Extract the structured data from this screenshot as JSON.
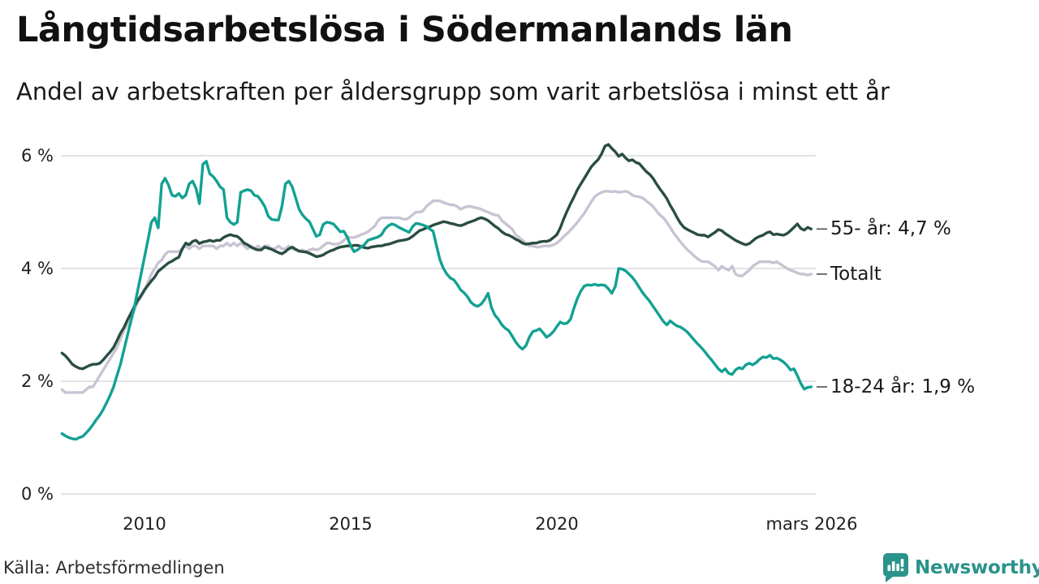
{
  "header": {
    "title": "Långtidsarbetslösa i Södermanlands län",
    "subtitle": "Andel av arbetskraften per åldersgrupp som varit arbetslösa i minst ett år"
  },
  "chart_data": {
    "type": "line",
    "unit": "%",
    "frequency": "monthly",
    "x_start": "2008-01",
    "x_end": "2026-03",
    "ylim": [
      0,
      6.45
    ],
    "grid": "horizontal",
    "legend_position": "right-end-labels",
    "colors": {
      "grid": "#e3e3e6",
      "tick_dash": "#4d4d4d",
      "background": "#ffffff"
    },
    "y_ticks": [
      {
        "v": 0,
        "label": "0 %"
      },
      {
        "v": 2,
        "label": "2 %"
      },
      {
        "v": 4,
        "label": "4 %"
      },
      {
        "v": 6,
        "label": "6 %"
      }
    ],
    "x_ticks": [
      {
        "t": 2010.0,
        "label": "2010"
      },
      {
        "t": 2015.0,
        "label": "2015"
      },
      {
        "t": 2020.0,
        "label": "2020"
      },
      {
        "t": 2026.1667,
        "label": "mars 2026"
      }
    ],
    "series": [
      {
        "id": "age-55-plus",
        "name": "55- år",
        "end_label": "55- år: 4,7 %",
        "end_value": "4,7 %",
        "color": "#2a4d42",
        "values": [
          2.5,
          2.45,
          2.38,
          2.3,
          2.26,
          2.23,
          2.22,
          2.25,
          2.28,
          2.3,
          2.3,
          2.32,
          2.38,
          2.45,
          2.52,
          2.6,
          2.72,
          2.85,
          2.95,
          3.08,
          3.2,
          3.32,
          3.43,
          3.52,
          3.62,
          3.7,
          3.78,
          3.85,
          3.95,
          4.0,
          4.05,
          4.1,
          4.13,
          4.17,
          4.2,
          4.35,
          4.45,
          4.42,
          4.48,
          4.5,
          4.44,
          4.47,
          4.48,
          4.5,
          4.48,
          4.5,
          4.5,
          4.55,
          4.58,
          4.6,
          4.58,
          4.57,
          4.52,
          4.45,
          4.42,
          4.38,
          4.35,
          4.33,
          4.33,
          4.38,
          4.36,
          4.34,
          4.31,
          4.28,
          4.26,
          4.3,
          4.35,
          4.38,
          4.34,
          4.31,
          4.3,
          4.29,
          4.27,
          4.24,
          4.21,
          4.22,
          4.24,
          4.28,
          4.31,
          4.33,
          4.36,
          4.38,
          4.39,
          4.4,
          4.4,
          4.41,
          4.41,
          4.39,
          4.37,
          4.36,
          4.38,
          4.39,
          4.4,
          4.4,
          4.42,
          4.43,
          4.45,
          4.47,
          4.49,
          4.5,
          4.51,
          4.53,
          4.57,
          4.62,
          4.67,
          4.69,
          4.72,
          4.74,
          4.77,
          4.79,
          4.81,
          4.83,
          4.82,
          4.8,
          4.79,
          4.77,
          4.76,
          4.78,
          4.81,
          4.83,
          4.85,
          4.88,
          4.9,
          4.88,
          4.85,
          4.8,
          4.75,
          4.71,
          4.65,
          4.61,
          4.59,
          4.56,
          4.52,
          4.49,
          4.45,
          4.43,
          4.44,
          4.45,
          4.45,
          4.47,
          4.48,
          4.48,
          4.5,
          4.55,
          4.6,
          4.72,
          4.88,
          5.02,
          5.15,
          5.27,
          5.4,
          5.5,
          5.6,
          5.7,
          5.8,
          5.87,
          5.93,
          6.03,
          6.17,
          6.2,
          6.13,
          6.07,
          5.99,
          6.03,
          5.96,
          5.91,
          5.93,
          5.88,
          5.86,
          5.79,
          5.72,
          5.67,
          5.6,
          5.5,
          5.41,
          5.33,
          5.24,
          5.12,
          5.02,
          4.9,
          4.8,
          4.73,
          4.69,
          4.66,
          4.63,
          4.6,
          4.59,
          4.59,
          4.56,
          4.6,
          4.64,
          4.69,
          4.67,
          4.62,
          4.58,
          4.54,
          4.5,
          4.47,
          4.44,
          4.42,
          4.44,
          4.49,
          4.54,
          4.57,
          4.59,
          4.63,
          4.65,
          4.6,
          4.61,
          4.6,
          4.59,
          4.62,
          4.67,
          4.73,
          4.79,
          4.71,
          4.68,
          4.73,
          4.7
        ]
      },
      {
        "id": "total",
        "name": "Totalt",
        "end_label": "Totalt",
        "end_value": "3,9 %",
        "color": "#c8c4d4",
        "values": [
          1.85,
          1.8,
          1.8,
          1.8,
          1.8,
          1.8,
          1.8,
          1.85,
          1.9,
          1.9,
          2.0,
          2.1,
          2.2,
          2.3,
          2.4,
          2.5,
          2.6,
          2.75,
          2.9,
          3.0,
          3.1,
          3.25,
          3.4,
          3.5,
          3.6,
          3.75,
          3.9,
          4.0,
          4.1,
          4.15,
          4.25,
          4.3,
          4.3,
          4.3,
          4.3,
          4.35,
          4.4,
          4.35,
          4.4,
          4.4,
          4.35,
          4.4,
          4.4,
          4.4,
          4.4,
          4.35,
          4.4,
          4.4,
          4.45,
          4.4,
          4.45,
          4.4,
          4.45,
          4.4,
          4.35,
          4.4,
          4.35,
          4.4,
          4.35,
          4.4,
          4.4,
          4.35,
          4.35,
          4.4,
          4.35,
          4.35,
          4.4,
          4.35,
          4.33,
          4.3,
          4.33,
          4.3,
          4.33,
          4.35,
          4.33,
          4.35,
          4.4,
          4.45,
          4.45,
          4.43,
          4.43,
          4.45,
          4.5,
          4.55,
          4.55,
          4.55,
          4.57,
          4.6,
          4.62,
          4.65,
          4.7,
          4.75,
          4.85,
          4.9,
          4.9,
          4.9,
          4.9,
          4.9,
          4.9,
          4.88,
          4.87,
          4.9,
          4.95,
          5.0,
          5.0,
          5.02,
          5.1,
          5.15,
          5.2,
          5.2,
          5.2,
          5.17,
          5.15,
          5.13,
          5.13,
          5.1,
          5.05,
          5.08,
          5.1,
          5.1,
          5.08,
          5.07,
          5.05,
          5.02,
          5.0,
          4.97,
          4.95,
          4.94,
          4.85,
          4.8,
          4.75,
          4.7,
          4.6,
          4.55,
          4.5,
          4.45,
          4.4,
          4.4,
          4.38,
          4.38,
          4.4,
          4.4,
          4.4,
          4.42,
          4.45,
          4.5,
          4.57,
          4.62,
          4.68,
          4.75,
          4.82,
          4.9,
          4.98,
          5.08,
          5.18,
          5.27,
          5.32,
          5.35,
          5.37,
          5.37,
          5.36,
          5.37,
          5.35,
          5.36,
          5.37,
          5.35,
          5.3,
          5.28,
          5.27,
          5.25,
          5.2,
          5.15,
          5.1,
          5.02,
          4.95,
          4.9,
          4.82,
          4.73,
          4.63,
          4.55,
          4.47,
          4.4,
          4.33,
          4.28,
          4.22,
          4.17,
          4.13,
          4.12,
          4.12,
          4.08,
          4.04,
          3.97,
          4.04,
          4.0,
          3.97,
          4.04,
          3.9,
          3.87,
          3.87,
          3.92,
          3.97,
          4.04,
          4.08,
          4.12,
          4.12,
          4.12,
          4.12,
          4.1,
          4.12,
          4.08,
          4.04,
          4.0,
          3.97,
          3.95,
          3.92,
          3.9,
          3.9,
          3.88,
          3.9
        ]
      },
      {
        "id": "age-18-24",
        "name": "18-24 år",
        "end_label": "18-24 år: 1,9 %",
        "end_value": "1,9 %",
        "color": "#12a192",
        "values": [
          1.07,
          1.03,
          1.0,
          0.98,
          0.97,
          1.0,
          1.02,
          1.08,
          1.15,
          1.23,
          1.32,
          1.4,
          1.5,
          1.62,
          1.75,
          1.9,
          2.1,
          2.3,
          2.55,
          2.8,
          3.05,
          3.3,
          3.6,
          3.9,
          4.2,
          4.5,
          4.82,
          4.9,
          4.72,
          5.5,
          5.6,
          5.48,
          5.3,
          5.28,
          5.33,
          5.25,
          5.3,
          5.5,
          5.55,
          5.42,
          5.15,
          5.85,
          5.9,
          5.68,
          5.63,
          5.55,
          5.45,
          5.4,
          4.9,
          4.82,
          4.78,
          4.82,
          5.35,
          5.38,
          5.4,
          5.38,
          5.3,
          5.28,
          5.2,
          5.1,
          4.93,
          4.87,
          4.86,
          4.86,
          5.1,
          5.5,
          5.55,
          5.45,
          5.25,
          5.05,
          4.95,
          4.88,
          4.83,
          4.7,
          4.57,
          4.6,
          4.78,
          4.82,
          4.81,
          4.79,
          4.72,
          4.65,
          4.66,
          4.56,
          4.4,
          4.3,
          4.33,
          4.38,
          4.42,
          4.5,
          4.52,
          4.54,
          4.56,
          4.6,
          4.7,
          4.76,
          4.79,
          4.77,
          4.73,
          4.7,
          4.67,
          4.64,
          4.74,
          4.8,
          4.79,
          4.77,
          4.75,
          4.7,
          4.66,
          4.4,
          4.15,
          4.0,
          3.9,
          3.83,
          3.8,
          3.72,
          3.62,
          3.57,
          3.5,
          3.4,
          3.35,
          3.33,
          3.37,
          3.45,
          3.56,
          3.3,
          3.17,
          3.1,
          3.0,
          2.94,
          2.9,
          2.8,
          2.7,
          2.62,
          2.57,
          2.63,
          2.78,
          2.88,
          2.9,
          2.93,
          2.86,
          2.78,
          2.82,
          2.88,
          2.97,
          3.05,
          3.02,
          3.03,
          3.1,
          3.3,
          3.47,
          3.6,
          3.69,
          3.71,
          3.7,
          3.72,
          3.7,
          3.71,
          3.7,
          3.64,
          3.56,
          3.68,
          4.0,
          3.99,
          3.96,
          3.9,
          3.84,
          3.76,
          3.66,
          3.57,
          3.49,
          3.42,
          3.33,
          3.24,
          3.15,
          3.06,
          3.0,
          3.07,
          3.02,
          2.98,
          2.96,
          2.92,
          2.87,
          2.8,
          2.73,
          2.66,
          2.6,
          2.53,
          2.45,
          2.38,
          2.3,
          2.22,
          2.17,
          2.22,
          2.14,
          2.12,
          2.2,
          2.24,
          2.22,
          2.29,
          2.32,
          2.29,
          2.33,
          2.39,
          2.43,
          2.42,
          2.46,
          2.4,
          2.41,
          2.38,
          2.34,
          2.28,
          2.2,
          2.22,
          2.1,
          1.96,
          1.86,
          1.89,
          1.9
        ]
      }
    ]
  },
  "footer": {
    "source": "Källa: Arbetsförmedlingen",
    "brand": "Newsworthy",
    "brand_color": "#2a938a"
  }
}
